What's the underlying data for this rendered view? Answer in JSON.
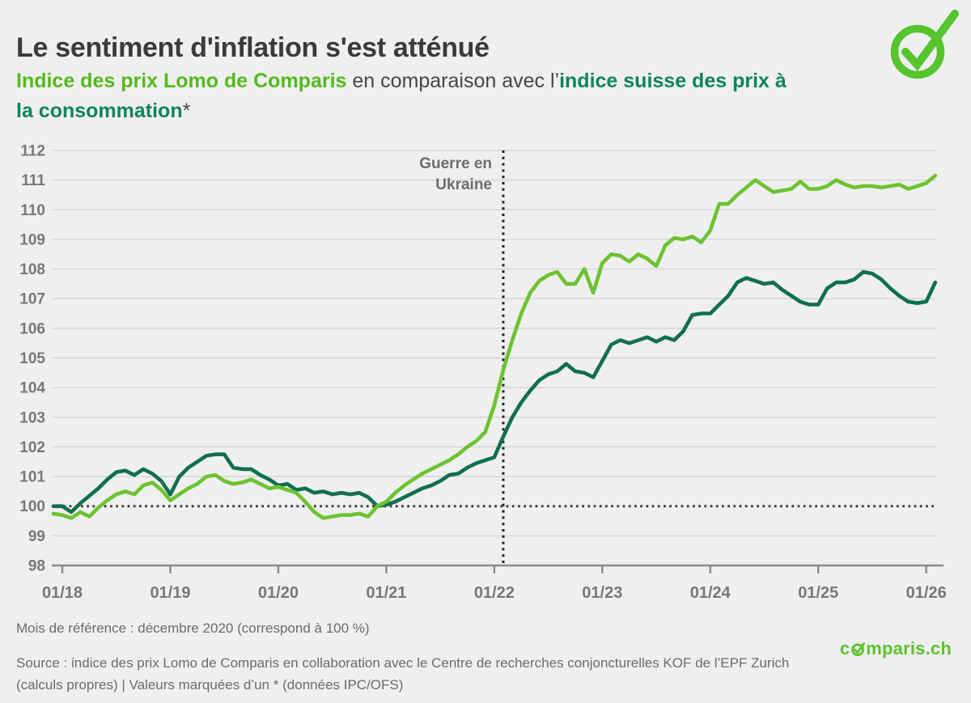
{
  "header": {
    "title": "Le sentiment d'inflation s'est atténué",
    "subtitle_parts": [
      {
        "text": "Indice des prix Lomo de Comparis",
        "style": "lomo-green-bold"
      },
      {
        "text": " en comparaison avec l’",
        "style": "plain"
      },
      {
        "text": "indice suisse des prix à",
        "style": "ipc-green-bold"
      },
      {
        "text": "la consommation",
        "style": "ipc-green-bold"
      },
      {
        "text": "*",
        "style": "plain"
      }
    ],
    "logo_icon": "comparis-check-circle"
  },
  "chart_data": {
    "type": "line",
    "title": "Indice des prix Lomo de Comparis vs indice suisse des prix à la consommation",
    "x_frequency": "monthly",
    "x_start": "12/2017",
    "x_end": "02/2026",
    "x_tick_labels": [
      "01/18",
      "01/19",
      "01/20",
      "01/21",
      "01/22",
      "01/23",
      "01/24",
      "01/25",
      "01/26"
    ],
    "x_tick_indices": [
      1,
      13,
      25,
      37,
      49,
      61,
      73,
      85,
      97
    ],
    "ylim": [
      98,
      112
    ],
    "y_ticks": [
      98,
      99,
      100,
      101,
      102,
      103,
      104,
      105,
      106,
      107,
      108,
      109,
      110,
      111,
      112
    ],
    "grid": "horizontal",
    "legend_position": "none",
    "baseline": {
      "value": 100,
      "style": "dotted",
      "color": "#3f3f3f"
    },
    "annotation": {
      "lines": [
        "Guerre en",
        "Ukraine"
      ],
      "x_index": 50,
      "style": "dotted-vertical-line",
      "color": "#1f1f1f"
    },
    "series": [
      {
        "name": "Indice des prix Lomo de Comparis",
        "color": "#6cc331",
        "values": [
          99.75,
          99.7,
          99.6,
          99.8,
          99.65,
          99.95,
          100.2,
          100.4,
          100.5,
          100.4,
          100.7,
          100.8,
          100.55,
          100.2,
          100.4,
          100.6,
          100.75,
          101.0,
          101.05,
          100.85,
          100.75,
          100.8,
          100.9,
          100.75,
          100.6,
          100.65,
          100.55,
          100.45,
          100.15,
          99.8,
          99.6,
          99.65,
          99.7,
          99.7,
          99.75,
          99.65,
          100.0,
          100.15,
          100.45,
          100.7,
          100.9,
          101.1,
          101.25,
          101.4,
          101.55,
          101.75,
          102.0,
          102.2,
          102.5,
          103.4,
          104.6,
          105.6,
          106.5,
          107.2,
          107.6,
          107.8,
          107.9,
          107.5,
          107.5,
          108.0,
          107.2,
          108.2,
          108.5,
          108.45,
          108.25,
          108.5,
          108.35,
          108.1,
          108.8,
          109.05,
          109.0,
          109.1,
          108.9,
          109.3,
          110.2,
          110.2,
          110.5,
          110.75,
          111.0,
          110.8,
          110.6,
          110.65,
          110.7,
          110.95,
          110.7,
          110.7,
          110.8,
          111.0,
          110.85,
          110.75,
          110.8,
          110.8,
          110.75,
          110.8,
          110.85,
          110.7,
          110.8,
          110.9,
          111.15
        ]
      },
      {
        "name": "Indice suisse des prix à la consommation (IPC)",
        "color": "#0f6f4e",
        "values": [
          100.0,
          100.0,
          99.8,
          100.1,
          100.35,
          100.6,
          100.9,
          101.15,
          101.2,
          101.05,
          101.25,
          101.1,
          100.85,
          100.4,
          101.0,
          101.3,
          101.5,
          101.7,
          101.75,
          101.75,
          101.3,
          101.25,
          101.25,
          101.05,
          100.9,
          100.7,
          100.75,
          100.55,
          100.6,
          100.45,
          100.5,
          100.4,
          100.45,
          100.4,
          100.45,
          100.3,
          100.0,
          100.05,
          100.15,
          100.3,
          100.45,
          100.6,
          100.7,
          100.85,
          101.05,
          101.1,
          101.3,
          101.45,
          101.55,
          101.65,
          102.35,
          103.0,
          103.5,
          103.9,
          104.25,
          104.45,
          104.55,
          104.8,
          104.55,
          104.5,
          104.35,
          104.9,
          105.45,
          105.6,
          105.5,
          105.6,
          105.7,
          105.55,
          105.7,
          105.6,
          105.9,
          106.45,
          106.5,
          106.5,
          106.8,
          107.1,
          107.55,
          107.7,
          107.6,
          107.5,
          107.55,
          107.3,
          107.1,
          106.9,
          106.8,
          106.8,
          107.35,
          107.55,
          107.55,
          107.65,
          107.9,
          107.85,
          107.65,
          107.35,
          107.1,
          106.9,
          106.85,
          106.9,
          107.55
        ]
      }
    ]
  },
  "footer": {
    "reference_note": "Mois de référence : décembre 2020 (correspond à 100 %)",
    "source_lines": [
      "Source : indice des prix Lomo de Comparis en collaboration avec le Centre de recherches conjoncturelles KOF de l’EPF Zurich",
      "(calculs propres) | Valeurs marquées d’un * (données IPC/OFS)"
    ],
    "logo": {
      "text": "comparis.ch",
      "prefix": "c",
      "suffix": "mparis.ch",
      "o_icon": "comparis-check-circle"
    }
  },
  "colors": {
    "background": "#efefef",
    "title": "#3a3a3a",
    "subtitle_lomo": "#54ba1d",
    "subtitle_ipc": "#0d855a",
    "gridline": "#d6d6d6",
    "axis": "#8a8a8a",
    "axis_labels": "#787878",
    "lomo_line": "#6cc331",
    "ipc_line": "#0f6f4e",
    "logo_green": "#5cc32c"
  }
}
